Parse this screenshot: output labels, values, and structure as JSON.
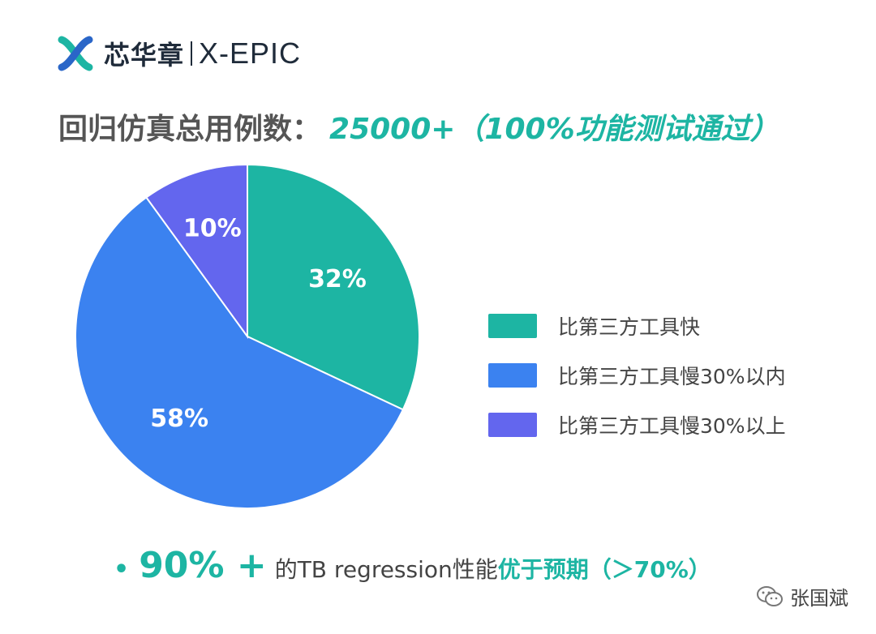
{
  "logo": {
    "brand_cn": "芯华章",
    "brand_en": "X-EPIC"
  },
  "headline": {
    "label": "回归仿真总用例数：",
    "value": "25000+（100%功能测试通过）"
  },
  "chart_data": {
    "type": "pie",
    "slices": [
      {
        "label": "比第三方工具快",
        "value": 32,
        "display": "32%",
        "color": "#1db5a3"
      },
      {
        "label": "比第三方工具慢30%以内",
        "value": 58,
        "display": "58%",
        "color": "#3b82f0"
      },
      {
        "label": "比第三方工具慢30%以上",
        "value": 10,
        "display": "10%",
        "color": "#6366ee"
      }
    ],
    "legend_position": "right"
  },
  "bottom": {
    "bullet": "•",
    "big": "90% +",
    "text": "的TB regression性能",
    "strong": "优于预期（＞70%）"
  },
  "watermark": {
    "text": "张国斌"
  }
}
